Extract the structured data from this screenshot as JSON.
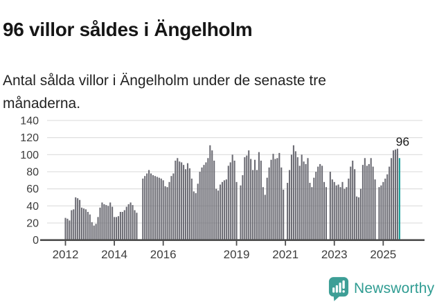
{
  "title": "96 villor såldes i Ängelholm",
  "subtitle": "Antal sålda villor i Ängelholm under de senaste tre månaderna.",
  "logo": {
    "name": "Newsworthy",
    "icon": "newsworthy-speech-bubble-bar-chart-icon"
  },
  "colors": {
    "bar": "#6c6c74",
    "highlight": "#129c96",
    "grid": "#e0e0e0",
    "axis": "#4d4d4d",
    "tick_text": "#3c3c3c",
    "annotation_text": "#1a1a1a",
    "logo_teal": "#2f9c92",
    "background": "#ffffff"
  },
  "chart_data": {
    "type": "bar",
    "title": "96 villor såldes i Ängelholm",
    "subtitle": "Antal sålda villor i Ängelholm under de senaste tre månaderna.",
    "unit": "antal sålda villor per rullande 3 månader",
    "frequency": "monthly",
    "start_month": "2012-01",
    "end_month": "2025-09",
    "grid": "horizontal",
    "ylim": [
      0,
      140
    ],
    "yticks": [
      0,
      20,
      40,
      60,
      80,
      100,
      120,
      140
    ],
    "xticks": [
      2012,
      2014,
      2016,
      2019,
      2021,
      2023,
      2025
    ],
    "last_value_label": "96",
    "highlight_last": true,
    "values": [
      26,
      25,
      23,
      35,
      36,
      50,
      49,
      47,
      38,
      37,
      36,
      33,
      30,
      21,
      17,
      19,
      27,
      38,
      44,
      42,
      41,
      40,
      44,
      39,
      27,
      27,
      28,
      33,
      33,
      35,
      39,
      42,
      44,
      41,
      35,
      32,
      null,
      null,
      72,
      75,
      78,
      82,
      78,
      76,
      75,
      74,
      73,
      72,
      70,
      63,
      62,
      68,
      75,
      78,
      93,
      96,
      92,
      91,
      88,
      83,
      90,
      84,
      72,
      57,
      55,
      66,
      80,
      85,
      88,
      91,
      96,
      111,
      105,
      93,
      60,
      58,
      65,
      68,
      70,
      71,
      87,
      91,
      100,
      93,
      68,
      null,
      64,
      76,
      97,
      99,
      105,
      95,
      82,
      94,
      82,
      103,
      93,
      62,
      53,
      73,
      85,
      94,
      101,
      95,
      96,
      102,
      85,
      59,
      null,
      67,
      82,
      100,
      111,
      104,
      97,
      87,
      100,
      92,
      89,
      96,
      67,
      62,
      73,
      80,
      86,
      89,
      87,
      68,
      62,
      null,
      80,
      71,
      68,
      64,
      65,
      62,
      68,
      60,
      62,
      72,
      86,
      93,
      83,
      51,
      50,
      60,
      88,
      96,
      87,
      89,
      96,
      86,
      71,
      null,
      62,
      64,
      68,
      72,
      77,
      86,
      96,
      105,
      106,
      107,
      96
    ]
  }
}
